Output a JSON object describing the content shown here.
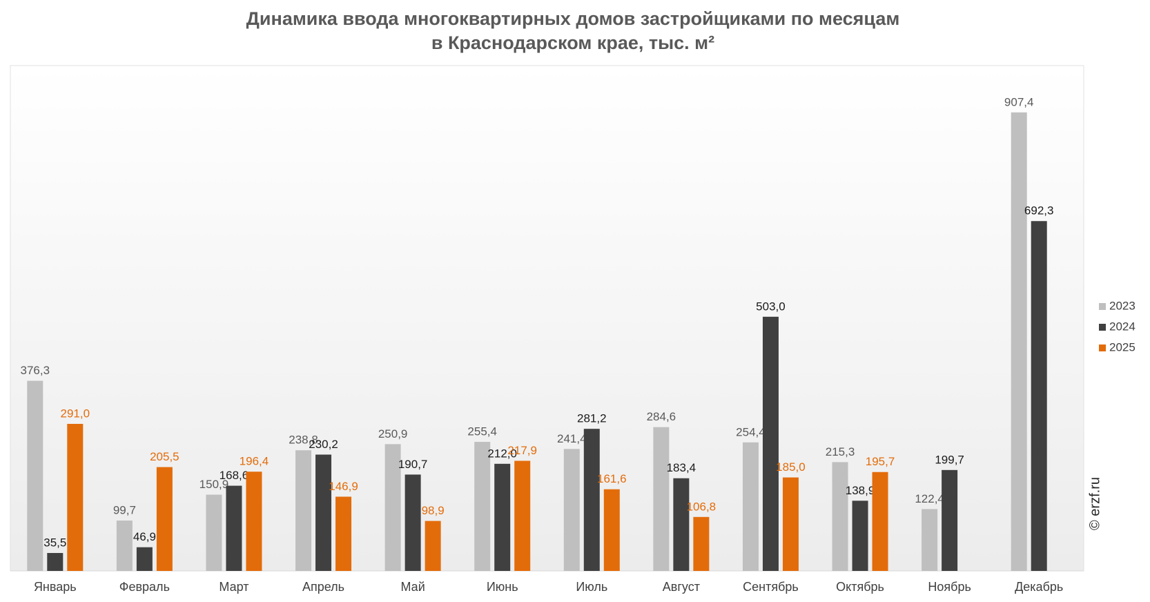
{
  "chart_data": {
    "type": "bar",
    "title": "Динамика ввода многоквартирных домов застройщиками по месяцам",
    "subtitle": "в Краснодарском крае, тыс. м²",
    "source": "© erzf.ru",
    "categories": [
      "Январь",
      "Февраль",
      "Март",
      "Апрель",
      "Май",
      "Июнь",
      "Июль",
      "Август",
      "Сентябрь",
      "Октябрь",
      "Ноябрь",
      "Декабрь"
    ],
    "series": [
      {
        "name": "2023",
        "color": "#bfbfbf",
        "label_color": "#595959",
        "values": [
          376.3,
          99.7,
          150.9,
          238.8,
          250.9,
          255.4,
          241.4,
          284.6,
          254.4,
          215.3,
          122.4,
          907.4
        ],
        "value_labels": [
          "376,3",
          "99,7",
          "150,9",
          "238,8",
          "250,9",
          "255,4",
          "241,4",
          "284,6",
          "254,4",
          "215,3",
          "122,4",
          "907,4"
        ]
      },
      {
        "name": "2024",
        "color": "#404040",
        "label_color": "#1a1a1a",
        "values": [
          35.5,
          46.9,
          168.6,
          230.2,
          190.7,
          212.0,
          281.2,
          183.4,
          503.0,
          138.9,
          199.7,
          692.3
        ],
        "value_labels": [
          "35,5",
          "46,9",
          "168,6",
          "230,2",
          "190,7",
          "212,0",
          "281,2",
          "183,4",
          "503,0",
          "138,9",
          "199,7",
          "692,3"
        ]
      },
      {
        "name": "2025",
        "color": "#e36c0a",
        "label_color": "#e36c0a",
        "values": [
          291.0,
          205.5,
          196.4,
          146.9,
          98.9,
          217.9,
          161.6,
          106.8,
          185.0,
          195.7,
          null,
          null
        ],
        "value_labels": [
          "291,0",
          "205,5",
          "196,4",
          "146,9",
          "98,9",
          "217,9",
          "161,6",
          "106,8",
          "185,0",
          "195,7",
          null,
          null
        ]
      }
    ],
    "ylim": [
      0,
      1000
    ],
    "legend": "right"
  }
}
